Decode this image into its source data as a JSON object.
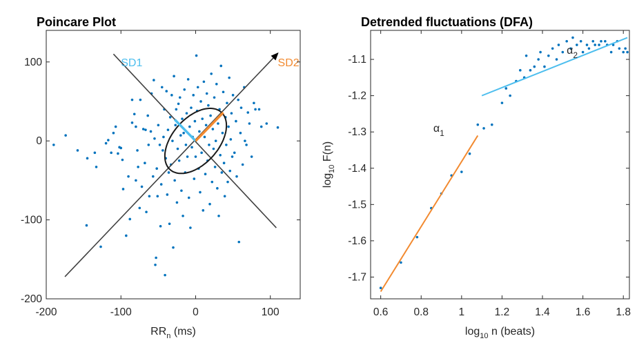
{
  "chart_data": [
    {
      "type": "scatter",
      "title": "Poincare Plot",
      "xlabel": "RR",
      "xlabel_sub": "n",
      "xlabel_unit": " (ms)",
      "ylabel": "",
      "xlim": [
        -200,
        140
      ],
      "ylim": [
        -200,
        140
      ],
      "xticks": [
        -200,
        -100,
        0,
        100
      ],
      "yticks": [
        -200,
        -100,
        0,
        100
      ],
      "xtick_labels": [
        "-200",
        "-100",
        "0",
        "100"
      ],
      "ytick_labels": [
        "-200",
        "-100",
        "0",
        "100"
      ],
      "grid": false,
      "colors": {
        "points": "#0072BD",
        "sd1": "#4DBEEE",
        "sd2": "#F28A30",
        "axes": "#404040",
        "ellipse": "#1a1a1a"
      },
      "annotations": [
        {
          "label": "SD1",
          "x": -100,
          "y": 100,
          "color": "#4DBEEE"
        },
        {
          "label": "SD2",
          "x": 110,
          "y": 100,
          "color": "#F28A30"
        }
      ],
      "axes_lines": [
        {
          "x": [
            -175,
            110
          ],
          "y": [
            -172,
            111
          ]
        },
        {
          "x": [
            108,
            -110
          ],
          "y": [
            -110,
            110
          ]
        }
      ],
      "ellipse": {
        "cx": 0,
        "cy": 0,
        "sd1": 30,
        "sd2": 50
      },
      "sd1_segment": {
        "x": [
          0,
          -28
        ],
        "y": [
          0,
          27
        ]
      },
      "sd2_segment": {
        "x": [
          0,
          37
        ],
        "y": [
          0,
          36
        ]
      },
      "points": [
        [
          -174,
          7
        ],
        [
          -158,
          -12
        ],
        [
          -146,
          -107
        ],
        [
          -145,
          -22
        ],
        [
          -135,
          -15
        ],
        [
          -133,
          -33
        ],
        [
          -127,
          -134
        ],
        [
          -120,
          -3
        ],
        [
          -117,
          1
        ],
        [
          -113,
          -15
        ],
        [
          -110,
          10
        ],
        [
          -107,
          18
        ],
        [
          -104,
          -16
        ],
        [
          -102,
          -8
        ],
        [
          -100,
          -9
        ],
        [
          -98,
          -24
        ],
        [
          -97,
          -61
        ],
        [
          -93,
          -120
        ],
        [
          -90,
          -45
        ],
        [
          -88,
          -99
        ],
        [
          -85,
          23
        ],
        [
          -85,
          52
        ],
        [
          -82,
          34
        ],
        [
          -80,
          -50
        ],
        [
          -80,
          18
        ],
        [
          -78,
          -12
        ],
        [
          -77,
          -33
        ],
        [
          -75,
          -85
        ],
        [
          -74,
          52
        ],
        [
          -72,
          -58
        ],
        [
          -70,
          15
        ],
        [
          -68,
          -28
        ],
        [
          -67,
          14
        ],
        [
          -66,
          -90
        ],
        [
          -64,
          32
        ],
        [
          -63,
          -5
        ],
        [
          -62,
          -70
        ],
        [
          -60,
          12
        ],
        [
          -59,
          60
        ],
        [
          -57,
          -45
        ],
        [
          -56,
          77
        ],
        [
          -55,
          3
        ],
        [
          -54,
          -157
        ],
        [
          -53,
          -148
        ],
        [
          -52,
          -35
        ],
        [
          -51,
          -70
        ],
        [
          -50,
          20
        ],
        [
          -48,
          -5
        ],
        [
          -47,
          -108
        ],
        [
          -46,
          -55
        ],
        [
          -45,
          68
        ],
        [
          -44,
          -12
        ],
        [
          -43,
          5
        ],
        [
          -42,
          40
        ],
        [
          -41,
          -170
        ],
        [
          -40,
          -22
        ],
        [
          -39,
          63
        ],
        [
          -38,
          -68
        ],
        [
          -37,
          14
        ],
        [
          -36,
          -40
        ],
        [
          -35,
          -105
        ],
        [
          -34,
          30
        ],
        [
          -33,
          -30
        ],
        [
          -32,
          58
        ],
        [
          -31,
          0
        ],
        [
          -30,
          -135
        ],
        [
          -29,
          82
        ],
        [
          -28,
          -50
        ],
        [
          -27,
          20
        ],
        [
          -26,
          40
        ],
        [
          -25,
          -78
        ],
        [
          -24,
          -10
        ],
        [
          -23,
          47
        ],
        [
          -22,
          -25
        ],
        [
          -21,
          55
        ],
        [
          -20,
          7
        ],
        [
          -19,
          -63
        ],
        [
          -18,
          28
        ],
        [
          -17,
          -95
        ],
        [
          -16,
          10
        ],
        [
          -15,
          65
        ],
        [
          -14,
          -40
        ],
        [
          -13,
          -5
        ],
        [
          -12,
          35
        ],
        [
          -11,
          -20
        ],
        [
          -10,
          78
        ],
        [
          -9,
          -72
        ],
        [
          -8,
          18
        ],
        [
          -7,
          -110
        ],
        [
          -6,
          42
        ],
        [
          -5,
          -8
        ],
        [
          -4,
          5
        ],
        [
          -3,
          58
        ],
        [
          -2,
          -48
        ],
        [
          -1,
          25
        ],
        [
          0,
          -20
        ],
        [
          1,
          108
        ],
        [
          2,
          38
        ],
        [
          3,
          68
        ],
        [
          4,
          -35
        ],
        [
          5,
          12
        ],
        [
          6,
          -65
        ],
        [
          7,
          50
        ],
        [
          8,
          -15
        ],
        [
          9,
          28
        ],
        [
          10,
          -88
        ],
        [
          11,
          75
        ],
        [
          12,
          5
        ],
        [
          13,
          -42
        ],
        [
          14,
          20
        ],
        [
          15,
          60
        ],
        [
          16,
          -25
        ],
        [
          17,
          45
        ],
        [
          18,
          -5
        ],
        [
          19,
          -80
        ],
        [
          20,
          32
        ],
        [
          21,
          85
        ],
        [
          22,
          -52
        ],
        [
          23,
          15
        ],
        [
          24,
          -10
        ],
        [
          25,
          55
        ],
        [
          26,
          -33
        ],
        [
          27,
          0
        ],
        [
          28,
          72
        ],
        [
          29,
          -60
        ],
        [
          30,
          22
        ],
        [
          31,
          -95
        ],
        [
          32,
          40
        ],
        [
          33,
          -18
        ],
        [
          34,
          95
        ],
        [
          35,
          -40
        ],
        [
          36,
          10
        ],
        [
          37,
          62
        ],
        [
          38,
          -28
        ],
        [
          39,
          -70
        ],
        [
          40,
          30
        ],
        [
          41,
          -5
        ],
        [
          42,
          48
        ],
        [
          43,
          -52
        ],
        [
          44,
          18
        ],
        [
          45,
          80
        ],
        [
          46,
          -38
        ],
        [
          47,
          2
        ],
        [
          48,
          35
        ],
        [
          49,
          -20
        ],
        [
          50,
          58
        ],
        [
          52,
          -15
        ],
        [
          54,
          25
        ],
        [
          55,
          -45
        ],
        [
          57,
          52
        ],
        [
          58,
          -128
        ],
        [
          60,
          10
        ],
        [
          61,
          42
        ],
        [
          63,
          -30
        ],
        [
          65,
          68
        ],
        [
          66,
          0
        ],
        [
          68,
          -5
        ],
        [
          70,
          36
        ],
        [
          72,
          22
        ],
        [
          75,
          -20
        ],
        [
          78,
          48
        ],
        [
          80,
          40
        ],
        [
          85,
          40
        ],
        [
          88,
          18
        ],
        [
          95,
          22
        ],
        [
          110,
          17
        ],
        [
          -190,
          -5
        ]
      ]
    },
    {
      "type": "scatter",
      "title": "Detrended fluctuations (DFA)",
      "xlabel": "log",
      "xlabel_sub": "10",
      "xlabel_unit": " n (beats)",
      "ylabel": "log",
      "ylabel_sub": "10",
      "ylabel_unit": " F(n)",
      "xlim": [
        0.55,
        1.83
      ],
      "ylim": [
        -1.76,
        -1.02
      ],
      "xticks": [
        0.6,
        0.8,
        1.0,
        1.2,
        1.4,
        1.6,
        1.8
      ],
      "xtick_labels": [
        "0.6",
        "0.8",
        "1",
        "1.2",
        "1.4",
        "1.6",
        "1.8"
      ],
      "yticks": [
        -1.7,
        -1.6,
        -1.5,
        -1.4,
        -1.3,
        -1.2,
        -1.1
      ],
      "ytick_labels": [
        "-1.7",
        "-1.6",
        "-1.5",
        "-1.4",
        "-1.3",
        "-1.2",
        "-1.1"
      ],
      "grid": false,
      "colors": {
        "points": "#0072BD",
        "alpha1": "#F28A30",
        "alpha2": "#4DBEEE"
      },
      "fits": [
        {
          "name": "α",
          "sub": "1",
          "x": [
            0.6,
            1.08
          ],
          "y": [
            -1.74,
            -1.31
          ],
          "color": "#F28A30",
          "label_x": 0.86,
          "label_y": -1.3
        },
        {
          "name": "α",
          "sub": "2",
          "x": [
            1.1,
            1.82
          ],
          "y": [
            -1.2,
            -1.04
          ],
          "color": "#4DBEEE",
          "label_x": 1.52,
          "label_y": -1.085
        }
      ],
      "points": [
        [
          0.6,
          -1.73
        ],
        [
          0.7,
          -1.66
        ],
        [
          0.78,
          -1.59
        ],
        [
          0.85,
          -1.51
        ],
        [
          0.9,
          -1.47
        ],
        [
          0.95,
          -1.42
        ],
        [
          1.0,
          -1.41
        ],
        [
          1.04,
          -1.36
        ],
        [
          1.08,
          -1.28
        ],
        [
          1.11,
          -1.29
        ],
        [
          1.15,
          -1.28
        ],
        [
          1.2,
          -1.22
        ],
        [
          1.22,
          -1.18
        ],
        [
          1.24,
          -1.2
        ],
        [
          1.27,
          -1.16
        ],
        [
          1.29,
          -1.13
        ],
        [
          1.31,
          -1.15
        ],
        [
          1.32,
          -1.09
        ],
        [
          1.34,
          -1.13
        ],
        [
          1.36,
          -1.12
        ],
        [
          1.38,
          -1.1
        ],
        [
          1.39,
          -1.08
        ],
        [
          1.41,
          -1.12
        ],
        [
          1.43,
          -1.09
        ],
        [
          1.45,
          -1.07
        ],
        [
          1.47,
          -1.1
        ],
        [
          1.48,
          -1.06
        ],
        [
          1.5,
          -1.08
        ],
        [
          1.52,
          -1.05
        ],
        [
          1.54,
          -1.07
        ],
        [
          1.55,
          -1.04
        ],
        [
          1.57,
          -1.06
        ],
        [
          1.59,
          -1.05
        ],
        [
          1.6,
          -1.08
        ],
        [
          1.62,
          -1.06
        ],
        [
          1.63,
          -1.07
        ],
        [
          1.65,
          -1.05
        ],
        [
          1.66,
          -1.06
        ],
        [
          1.68,
          -1.06
        ],
        [
          1.69,
          -1.05
        ],
        [
          1.71,
          -1.05
        ],
        [
          1.72,
          -1.06
        ],
        [
          1.74,
          -1.08
        ],
        [
          1.75,
          -1.06
        ],
        [
          1.77,
          -1.05
        ],
        [
          1.78,
          -1.07
        ],
        [
          1.8,
          -1.08
        ],
        [
          1.81,
          -1.07
        ],
        [
          1.82,
          -1.08
        ]
      ]
    }
  ]
}
